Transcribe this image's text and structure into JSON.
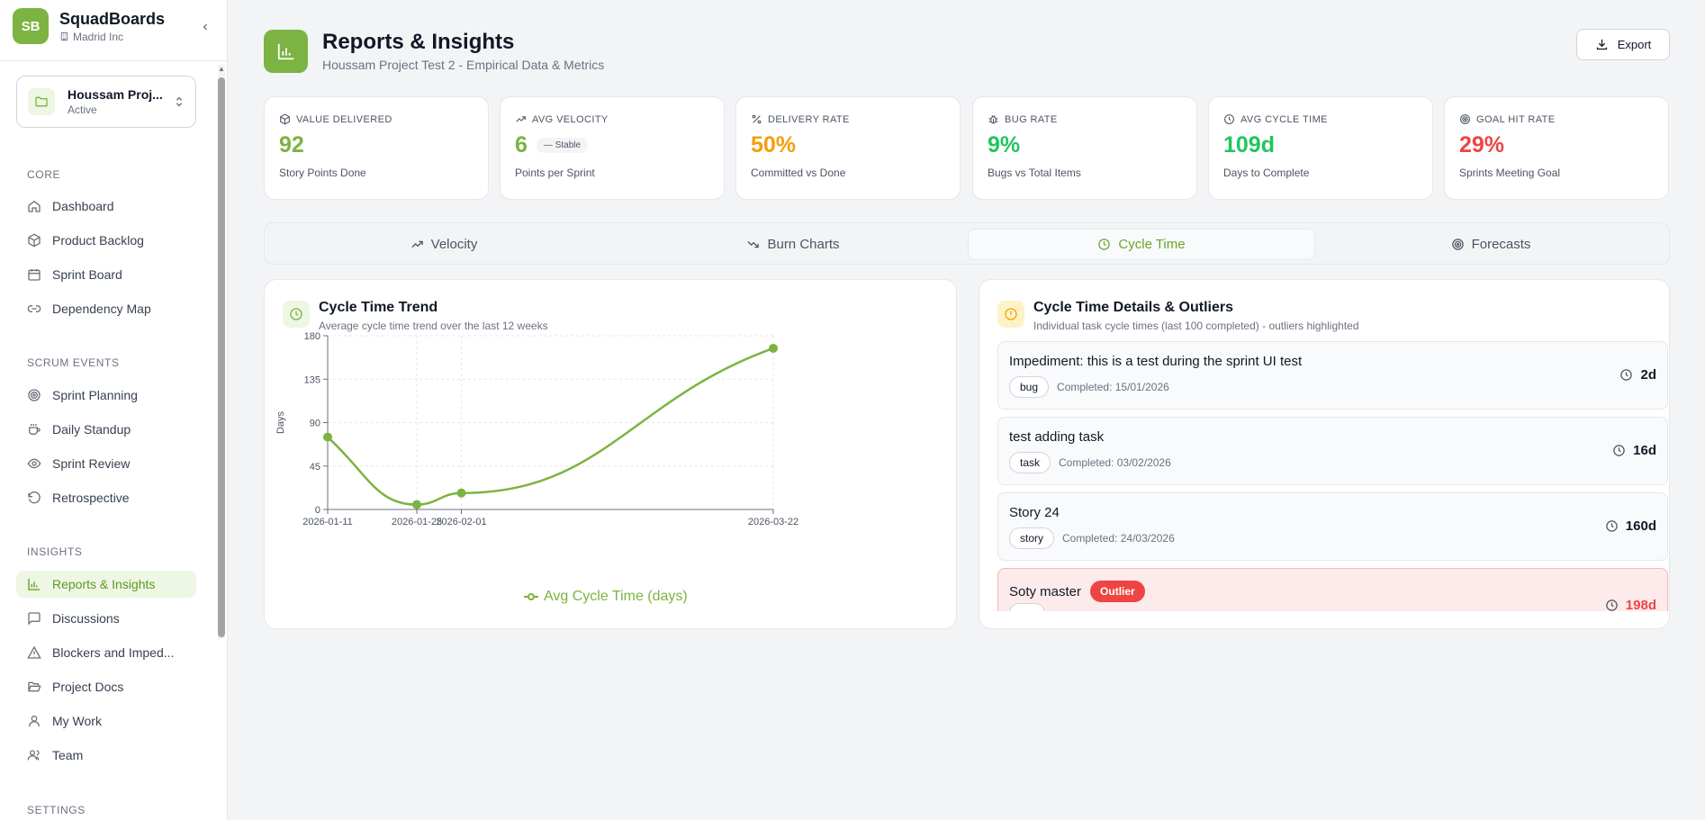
{
  "sidebar": {
    "brand_initials": "SB",
    "brand_name": "SquadBoards",
    "org": "Madrid Inc",
    "project": {
      "name": "Houssam Proj...",
      "status": "Active"
    },
    "sections": {
      "core": "CORE",
      "scrum": "SCRUM EVENTS",
      "insights": "INSIGHTS",
      "settings": "SETTINGS"
    },
    "items": {
      "dashboard": "Dashboard",
      "backlog": "Product Backlog",
      "sprint_board": "Sprint Board",
      "dependency_map": "Dependency Map",
      "sprint_planning": "Sprint Planning",
      "daily_standup": "Daily Standup",
      "sprint_review": "Sprint Review",
      "retrospective": "Retrospective",
      "reports": "Reports & Insights",
      "discussions": "Discussions",
      "blockers": "Blockers and Imped...",
      "project_docs": "Project Docs",
      "my_work": "My Work",
      "team": "Team"
    }
  },
  "header": {
    "title": "Reports & Insights",
    "subtitle": "Houssam Project Test 2 - Empirical Data & Metrics",
    "export_label": "Export"
  },
  "metrics": [
    {
      "label": "VALUE DELIVERED",
      "value": "92",
      "desc": "Story Points Done",
      "color": "#7cb342"
    },
    {
      "label": "AVG VELOCITY",
      "value": "6",
      "badge": "— Stable",
      "desc": "Points per Sprint",
      "color": "#7cb342"
    },
    {
      "label": "DELIVERY RATE",
      "value": "50%",
      "desc": "Committed vs Done",
      "color": "#f59e0b"
    },
    {
      "label": "BUG RATE",
      "value": "9%",
      "desc": "Bugs vs Total Items",
      "color": "#22c55e"
    },
    {
      "label": "AVG CYCLE TIME",
      "value": "109d",
      "desc": "Days to Complete",
      "color": "#22c55e"
    },
    {
      "label": "GOAL HIT RATE",
      "value": "29%",
      "desc": "Sprints Meeting Goal",
      "color": "#ef4444"
    }
  ],
  "tabs": {
    "velocity": "Velocity",
    "burn": "Burn Charts",
    "cycle": "Cycle Time",
    "forecasts": "Forecasts"
  },
  "trend_card": {
    "title": "Cycle Time Trend",
    "subtitle": "Average cycle time trend over the last 12 weeks"
  },
  "chart_data": {
    "type": "line",
    "title": "Cycle Time Trend",
    "xlabel": "",
    "ylabel": "Days",
    "x": [
      "2026-01-11",
      "2026-01-25",
      "2026-02-01",
      "2026-03-22"
    ],
    "series": [
      {
        "name": "Avg Cycle Time (days)",
        "values": [
          75,
          5,
          17,
          167
        ]
      }
    ],
    "ylim": [
      0,
      180
    ],
    "yticks": [
      "0",
      "45",
      "90",
      "135",
      "180"
    ],
    "grid": true,
    "legend": "bottom",
    "color": "#7cb342"
  },
  "details_card": {
    "title": "Cycle Time Details & Outliers",
    "subtitle": "Individual task cycle times (last 100 completed) - outliers highlighted",
    "outlier_label": "Outlier",
    "rows": [
      {
        "title": "Impediment: this is a test during the sprint UI test",
        "tag": "bug",
        "completed": "Completed: 15/01/2026",
        "time": "2d"
      },
      {
        "title": "test adding task",
        "tag": "task",
        "completed": "Completed: 03/02/2026",
        "time": "16d"
      },
      {
        "title": "Story 24",
        "tag": "story",
        "completed": "Completed: 24/03/2026",
        "time": "160d"
      },
      {
        "title": "Soty master",
        "tag": "",
        "completed": "",
        "time": "198d"
      }
    ]
  }
}
